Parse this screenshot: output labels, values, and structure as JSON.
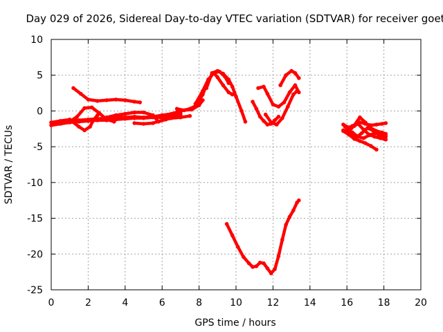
{
  "chart_data": {
    "type": "scatter",
    "title": "Day 029 of 2026, Sidereal Day-to-day VTEC variation (SDTVAR) for receiver goet",
    "xlabel": "GPS time / hours",
    "ylabel": "SDTVAR / TECUs",
    "xlim": [
      0,
      20
    ],
    "ylim": [
      -25,
      10
    ],
    "x_ticks": [
      "0",
      "2",
      "4",
      "6",
      "8",
      "10",
      "12",
      "14",
      "16",
      "18",
      "20"
    ],
    "y_ticks": [
      "10",
      "5",
      "0",
      "-5",
      "-10",
      "-15",
      "-20",
      "-25"
    ],
    "grid": true,
    "legend": "none",
    "series_color": "#ff0000",
    "series": [
      {
        "x": [
          0.0,
          0.5,
          1.0,
          1.5,
          2.0,
          2.5,
          3.0,
          3.5,
          4.0,
          4.5,
          5.0,
          5.5,
          6.0,
          6.5,
          7.0,
          7.5,
          7.8,
          8.0,
          8.2,
          8.4
        ],
        "y": [
          -1.6,
          -1.4,
          -1.3,
          -1.3,
          -1.2,
          -1.1,
          -1.0,
          -0.9,
          -0.9,
          -0.8,
          -0.9,
          -0.8,
          -0.6,
          -0.4,
          0.0,
          0.3,
          0.7,
          1.4,
          2.3,
          3.6
        ]
      },
      {
        "x": [
          0.0,
          0.5,
          1.0,
          1.5,
          2.0,
          2.5,
          3.0,
          3.5,
          4.0,
          4.5,
          5.0,
          5.5,
          6.0,
          6.5,
          7.0
        ],
        "y": [
          -2.0,
          -1.8,
          -1.6,
          -1.5,
          -1.4,
          -1.3,
          -1.3,
          -1.2,
          -1.1,
          -1.0,
          -1.0,
          -0.9,
          -0.9,
          -0.8,
          -0.6
        ]
      },
      {
        "x": [
          1.2,
          1.6,
          2.0,
          2.5,
          3.0,
          3.5,
          4.0,
          4.5,
          4.8
        ],
        "y": [
          3.2,
          2.4,
          1.6,
          1.4,
          1.5,
          1.6,
          1.5,
          1.3,
          1.2
        ]
      },
      {
        "x": [
          0.5,
          1.0,
          1.5,
          1.8,
          2.1,
          2.3,
          2.5
        ],
        "y": [
          -1.4,
          -1.2,
          -2.2,
          -2.7,
          -2.2,
          -1.2,
          -0.6
        ]
      },
      {
        "x": [
          1.0,
          1.4,
          1.8,
          2.2,
          2.6,
          3.0,
          3.4
        ],
        "y": [
          -1.5,
          -0.8,
          0.4,
          0.5,
          -0.3,
          -1.2,
          -1.5
        ]
      },
      {
        "x": [
          3.0,
          3.5,
          4.0,
          4.5,
          5.0,
          5.5,
          5.8,
          6.2,
          6.6,
          7.0
        ],
        "y": [
          -0.9,
          -0.6,
          -0.4,
          -0.2,
          -0.2,
          -0.6,
          -1.5,
          -1.2,
          -0.8,
          -0.3
        ]
      },
      {
        "x": [
          4.5,
          5.0,
          5.5,
          6.0,
          6.5,
          7.0,
          7.5
        ],
        "y": [
          -1.7,
          -1.8,
          -1.7,
          -1.3,
          -1.0,
          -0.9,
          -0.7
        ]
      },
      {
        "x": [
          6.8,
          7.2,
          7.6,
          8.0,
          8.2
        ],
        "y": [
          0.3,
          0.1,
          0.2,
          0.8,
          1.5
        ]
      },
      {
        "x": [
          7.8,
          8.2,
          8.5,
          8.8,
          9.1,
          9.4,
          9.6
        ],
        "y": [
          1.0,
          2.8,
          4.4,
          5.3,
          5.5,
          4.8,
          3.9
        ]
      },
      {
        "x": [
          8.4,
          8.7,
          9.0,
          9.3,
          9.6,
          9.8,
          10.0,
          10.3,
          10.5
        ],
        "y": [
          3.2,
          5.3,
          5.6,
          5.2,
          4.4,
          3.4,
          2.0,
          0.0,
          -1.5
        ]
      },
      {
        "x": [
          8.8,
          9.0,
          9.3,
          9.6,
          9.8
        ],
        "y": [
          5.3,
          4.7,
          3.6,
          2.6,
          2.3
        ]
      },
      {
        "x": [
          10.9,
          11.1,
          11.3,
          11.5,
          11.7,
          11.9,
          12.1,
          12.3
        ],
        "y": [
          1.3,
          0.3,
          -0.8,
          -1.4,
          -1.9,
          -1.8,
          -1.3,
          -0.8
        ]
      },
      {
        "x": [
          11.2,
          11.5,
          11.7,
          12.0,
          12.3,
          12.6,
          12.9,
          13.2,
          13.4
        ],
        "y": [
          3.2,
          3.4,
          2.4,
          0.9,
          0.6,
          1.2,
          2.6,
          3.6,
          2.6
        ]
      },
      {
        "x": [
          11.6,
          11.9,
          12.2,
          12.5,
          12.8,
          13.1,
          13.3
        ],
        "y": [
          -0.5,
          -1.6,
          -1.9,
          -1.0,
          0.6,
          2.3,
          2.8
        ]
      },
      {
        "x": [
          12.4,
          12.7,
          13.0,
          13.2,
          13.4
        ],
        "y": [
          3.6,
          5.0,
          5.6,
          5.3,
          4.6
        ]
      },
      {
        "x": [
          9.5,
          9.8,
          10.1,
          10.4,
          10.7,
          10.9,
          11.1,
          11.3,
          11.5,
          11.7,
          11.9,
          12.1,
          12.3,
          12.5,
          12.7,
          12.9,
          13.1,
          13.3,
          13.4
        ],
        "y": [
          -15.8,
          -17.4,
          -19.0,
          -20.4,
          -21.3,
          -21.8,
          -21.7,
          -21.2,
          -21.3,
          -22.0,
          -22.7,
          -22.1,
          -20.3,
          -18.0,
          -15.9,
          -14.8,
          -13.9,
          -12.8,
          -12.5
        ]
      },
      {
        "x": [
          15.8,
          16.1,
          16.4,
          16.7,
          17.0,
          17.3,
          17.6,
          17.9,
          18.1
        ],
        "y": [
          -1.9,
          -2.3,
          -2.1,
          -1.6,
          -1.8,
          -2.0,
          -1.9,
          -1.8,
          -1.7
        ]
      },
      {
        "x": [
          15.8,
          16.1,
          16.4,
          16.7,
          17.0,
          17.3,
          17.6,
          17.9,
          18.1
        ],
        "y": [
          -2.7,
          -2.9,
          -2.0,
          -0.9,
          -1.6,
          -2.4,
          -2.8,
          -3.0,
          -3.2
        ]
      },
      {
        "x": [
          15.9,
          16.2,
          16.5,
          16.8,
          17.1,
          17.4,
          17.7,
          18.0,
          18.1
        ],
        "y": [
          -2.2,
          -3.0,
          -3.7,
          -3.1,
          -2.4,
          -2.7,
          -3.3,
          -3.5,
          -3.6
        ]
      },
      {
        "x": [
          15.8,
          16.1,
          16.4,
          16.7,
          17.0,
          17.3,
          17.6
        ],
        "y": [
          -2.8,
          -3.3,
          -3.9,
          -4.2,
          -4.5,
          -4.9,
          -5.4
        ]
      },
      {
        "x": [
          16.0,
          16.3,
          16.6,
          16.9,
          17.2,
          17.5,
          17.8,
          18.1
        ],
        "y": [
          -2.4,
          -2.1,
          -1.8,
          -2.6,
          -3.3,
          -3.6,
          -3.8,
          -4.0
        ]
      },
      {
        "x": [
          16.3,
          16.6,
          16.9,
          17.2,
          17.5,
          17.8,
          18.1
        ],
        "y": [
          -3.0,
          -3.6,
          -3.8,
          -3.4,
          -3.1,
          -3.3,
          -3.5
        ]
      }
    ]
  }
}
